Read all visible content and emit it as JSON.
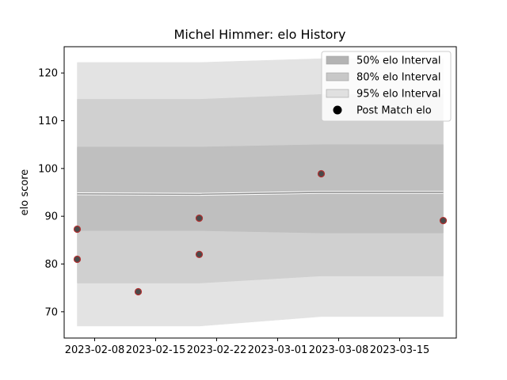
{
  "chart_data": {
    "type": "area",
    "title": "Michel Himmer: elo History",
    "xlabel": "",
    "ylabel": "elo score",
    "xlim": [
      "2023-02-04T12:00",
      "2023-03-21T12:00"
    ],
    "ylim": [
      64.5,
      125.5
    ],
    "x_ticks": [
      "2023-02-08",
      "2023-02-15",
      "2023-02-22",
      "2023-03-01",
      "2023-03-08",
      "2023-03-15"
    ],
    "y_ticks": [
      70,
      80,
      90,
      100,
      110,
      120
    ],
    "grid": false,
    "legend_position": "top-right",
    "band_dates": [
      "2023-02-06",
      "2023-02-20",
      "2023-03-06",
      "2023-03-20"
    ],
    "mean": [
      94.7,
      94.6,
      95.0,
      95.0
    ],
    "bands": [
      {
        "name": "95% elo Interval",
        "color": "#e3e3e3",
        "lower": [
          67.0,
          67.0,
          69.0,
          69.0
        ],
        "upper": [
          122.2,
          122.2,
          123.0,
          123.0
        ]
      },
      {
        "name": "80% elo Interval",
        "color": "#d0d0d0",
        "lower": [
          76.0,
          76.0,
          77.5,
          77.5
        ],
        "upper": [
          114.5,
          114.5,
          115.5,
          115.5
        ]
      },
      {
        "name": "50% elo Interval",
        "color": "#bfbfbf",
        "lower": [
          87.0,
          87.0,
          86.5,
          86.5
        ],
        "upper": [
          104.5,
          104.5,
          105.0,
          105.0
        ]
      }
    ],
    "points_series": {
      "name": "Post Match elo",
      "color": "#4a4a4a",
      "edge_color": "#b03030"
    },
    "points": [
      {
        "x": "2023-02-06",
        "y": 87.3
      },
      {
        "x": "2023-02-06",
        "y": 81.0
      },
      {
        "x": "2023-02-13",
        "y": 74.2
      },
      {
        "x": "2023-02-20",
        "y": 89.6
      },
      {
        "x": "2023-02-20",
        "y": 82.0
      },
      {
        "x": "2023-03-06",
        "y": 98.9
      },
      {
        "x": "2023-03-20",
        "y": 89.1
      }
    ],
    "legend": [
      {
        "label": "50% elo Interval",
        "kind": "patch",
        "color": "#b3b3b3"
      },
      {
        "label": "80% elo Interval",
        "kind": "patch",
        "color": "#c8c8c8"
      },
      {
        "label": "95% elo Interval",
        "kind": "patch",
        "color": "#e0e0e0"
      },
      {
        "label": "Post Match elo",
        "kind": "marker",
        "color": "#000000"
      }
    ]
  }
}
